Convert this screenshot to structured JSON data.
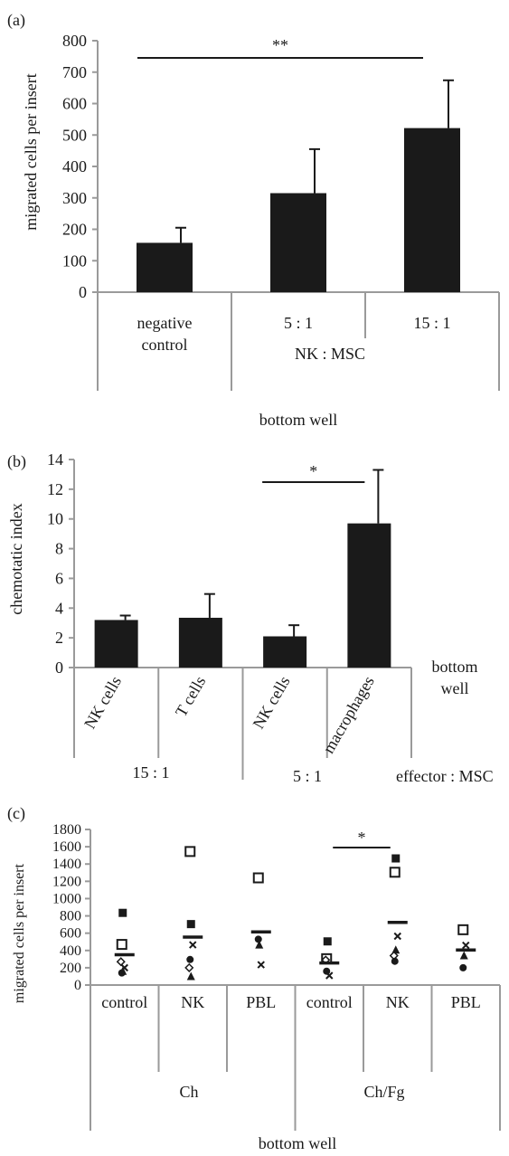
{
  "chart_data": [
    {
      "type": "bar",
      "panel_label": "(a)",
      "ylabel": "migrated cells per insert",
      "ylim": [
        0,
        800
      ],
      "yticks": [
        0,
        100,
        200,
        300,
        400,
        500,
        600,
        700,
        800
      ],
      "categories": [
        "negative control",
        "5 : 1",
        "15 : 1"
      ],
      "category_lines": [
        [
          "negative",
          "control"
        ],
        [
          "5 : 1"
        ],
        [
          "15 : 1"
        ]
      ],
      "values": [
        157,
        315,
        522
      ],
      "errors": [
        48,
        140,
        152
      ],
      "group_label": "NK : MSC",
      "xlabel": "bottom well",
      "significance": {
        "from": 0,
        "to": 2,
        "label": "**"
      }
    },
    {
      "type": "bar",
      "panel_label": "(b)",
      "ylabel": "chemotatic index",
      "ylim": [
        0,
        14
      ],
      "yticks": [
        0,
        2,
        4,
        6,
        8,
        10,
        12,
        14
      ],
      "categories": [
        "NK cells",
        "T cells",
        "NK cells",
        "macrophages"
      ],
      "values": [
        3.2,
        3.35,
        2.1,
        9.7
      ],
      "errors": [
        0.3,
        1.6,
        0.75,
        3.6
      ],
      "groups": [
        "15 : 1",
        "5 : 1"
      ],
      "group_title": "effector : MSC",
      "side_label": [
        "bottom",
        "well"
      ],
      "significance": {
        "from": 2,
        "to": 3,
        "label": "*"
      }
    },
    {
      "type": "scatter",
      "panel_label": "(c)",
      "ylabel": "migrated cells per insert",
      "ylim": [
        0,
        1800
      ],
      "yticks": [
        0,
        200,
        400,
        600,
        800,
        1000,
        1200,
        1400,
        1600,
        1800
      ],
      "categories": [
        "control",
        "NK",
        "PBL",
        "control",
        "NK",
        "PBL"
      ],
      "groups": [
        "Ch",
        "Ch/Fg"
      ],
      "xlabel": "bottom well",
      "means": [
        350,
        555,
        615,
        255,
        725,
        405
      ],
      "points": [
        [
          {
            "m": "filled-square",
            "y": 835
          },
          {
            "m": "open-square",
            "y": 470
          },
          {
            "m": "open-diamond",
            "y": 270
          },
          {
            "m": "cross",
            "y": 200
          },
          {
            "m": "filled-triangle",
            "y": 160
          },
          {
            "m": "filled-circle",
            "y": 140
          }
        ],
        [
          {
            "m": "open-square",
            "y": 1545
          },
          {
            "m": "filled-square",
            "y": 705
          },
          {
            "m": "cross",
            "y": 465
          },
          {
            "m": "filled-circle",
            "y": 295
          },
          {
            "m": "open-diamond",
            "y": 200
          },
          {
            "m": "filled-triangle",
            "y": 100
          }
        ],
        [
          {
            "m": "open-square",
            "y": 1240
          },
          {
            "m": "filled-circle",
            "y": 530
          },
          {
            "m": "filled-triangle",
            "y": 465
          },
          {
            "m": "cross",
            "y": 235
          }
        ],
        [
          {
            "m": "filled-square",
            "y": 505
          },
          {
            "m": "open-square",
            "y": 305
          },
          {
            "m": "open-diamond",
            "y": 290
          },
          {
            "m": "filled-circle",
            "y": 160
          },
          {
            "m": "cross",
            "y": 110
          }
        ],
        [
          {
            "m": "filled-square",
            "y": 1465
          },
          {
            "m": "open-square",
            "y": 1305
          },
          {
            "m": "cross",
            "y": 565
          },
          {
            "m": "filled-triangle",
            "y": 405
          },
          {
            "m": "open-diamond",
            "y": 340
          },
          {
            "m": "filled-circle",
            "y": 275
          }
        ],
        [
          {
            "m": "open-square",
            "y": 640
          },
          {
            "m": "cross",
            "y": 460
          },
          {
            "m": "filled-triangle",
            "y": 340
          },
          {
            "m": "filled-circle",
            "y": 200
          }
        ]
      ],
      "significance": {
        "from": 3,
        "to": 4,
        "label": "*"
      }
    }
  ]
}
